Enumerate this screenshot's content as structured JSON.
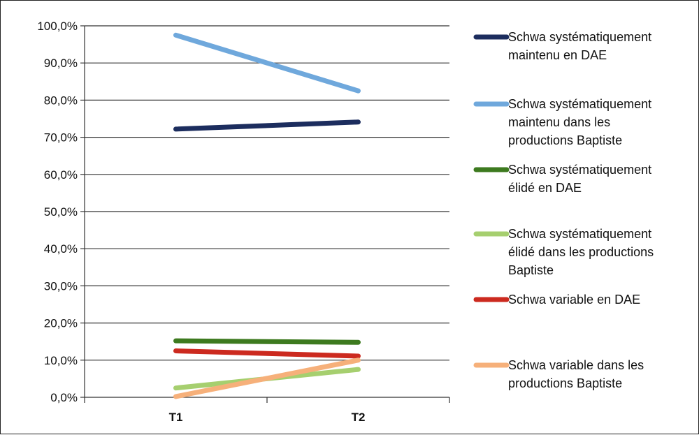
{
  "chart_data": {
    "type": "line",
    "categories": [
      "T1",
      "T2"
    ],
    "ylim": [
      0,
      100
    ],
    "y_ticks": [
      "0,0%",
      "10,0%",
      "20,0%",
      "30,0%",
      "40,0%",
      "50,0%",
      "60,0%",
      "70,0%",
      "80,0%",
      "90,0%",
      "100,0%"
    ],
    "grid": true,
    "legend_position": "right",
    "series": [
      {
        "name": "Schwa systématiquement maintenu en DAE",
        "color": "#1c2d5e",
        "values": [
          72.2,
          74.1
        ]
      },
      {
        "name": "Schwa systématiquement maintenu dans les productions Baptiste",
        "color": "#6fa8dc",
        "values": [
          97.5,
          82.5
        ]
      },
      {
        "name": "Schwa systématiquement élidé en DAE",
        "color": "#3d7a1f",
        "values": [
          15.2,
          14.8
        ]
      },
      {
        "name": "Schwa systématiquement élidé dans les productions Baptiste",
        "color": "#a6cf6f",
        "values": [
          2.5,
          7.5
        ]
      },
      {
        "name": "Schwa variable en DAE",
        "color": "#cc2a1f",
        "values": [
          12.5,
          11.1
        ]
      },
      {
        "name": "Schwa variable dans les productions Baptiste",
        "color": "#f6b07a",
        "values": [
          0.2,
          10.0
        ]
      }
    ]
  }
}
